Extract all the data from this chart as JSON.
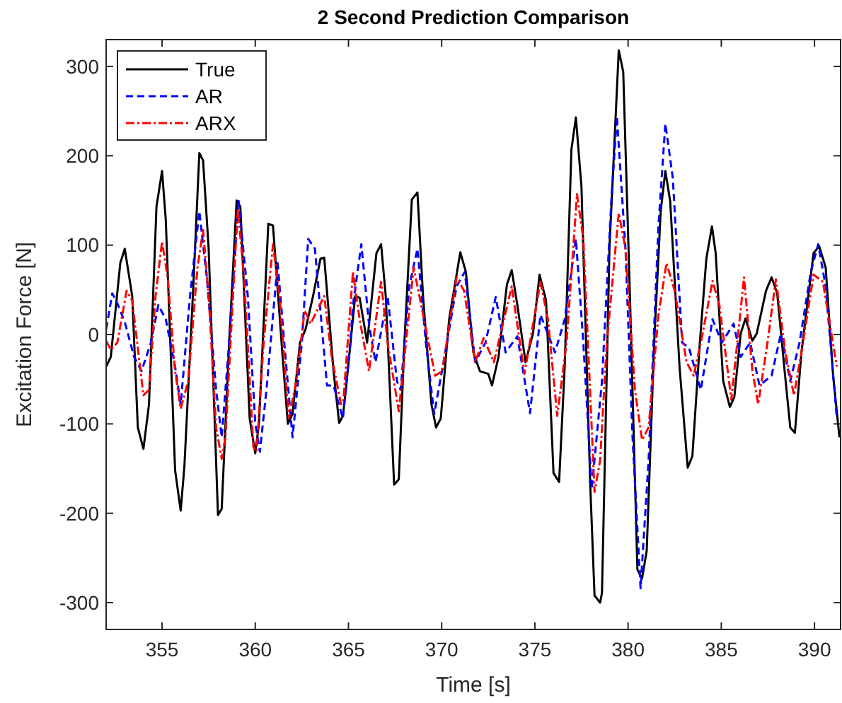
{
  "chart_data": {
    "type": "line",
    "title": "2 Second Prediction Comparison",
    "xlabel": "Time [s]",
    "ylabel": "Excitation Force [N]",
    "xlim": [
      352,
      391.4
    ],
    "ylim": [
      -330,
      330
    ],
    "xticks": [
      355,
      360,
      365,
      370,
      375,
      380,
      385,
      390
    ],
    "yticks": [
      -300,
      -200,
      -100,
      0,
      100,
      200,
      300
    ],
    "grid": false,
    "legend": "top left",
    "marker": "none",
    "series": [
      {
        "name": "True",
        "color": "#000000",
        "line_style": "solid",
        "x": [
          352.0,
          352.25,
          352.76,
          353.0,
          353.4,
          353.7,
          354.0,
          354.3,
          354.7,
          355.0,
          355.2,
          355.7,
          356.0,
          356.2,
          356.7,
          357.0,
          357.2,
          357.5,
          358.0,
          358.2,
          358.6,
          359.0,
          359.2,
          359.7,
          360.0,
          360.2,
          360.7,
          360.95,
          361.45,
          361.75,
          362.0,
          362.4,
          362.7,
          363.1,
          363.5,
          363.7,
          364.2,
          364.5,
          364.7,
          364.86,
          365.36,
          365.6,
          366.0,
          366.5,
          366.75,
          367.0,
          367.45,
          367.7,
          368.0,
          368.4,
          368.7,
          369.0,
          369.45,
          369.7,
          369.95,
          370.4,
          371.0,
          371.3,
          371.7,
          372.05,
          372.5,
          372.7,
          373.05,
          373.5,
          373.76,
          374.06,
          374.5,
          374.9,
          375.25,
          375.6,
          376.0,
          376.3,
          376.6,
          376.96,
          377.2,
          377.5,
          377.97,
          378.2,
          378.5,
          378.6,
          379.0,
          379.5,
          379.74,
          380.1,
          380.5,
          380.75,
          381.0,
          381.4,
          381.75,
          382.0,
          382.26,
          382.76,
          383.2,
          383.45,
          383.85,
          384.2,
          384.5,
          384.7,
          385.1,
          385.46,
          385.7,
          386.04,
          386.3,
          386.67,
          386.9,
          387.4,
          387.7,
          388.0,
          388.4,
          388.7,
          388.95,
          389.3,
          389.95,
          390.25,
          390.6,
          391.0,
          391.34
        ],
        "values": [
          -36,
          -25,
          80,
          96,
          43,
          -104,
          -128,
          -78,
          143,
          183,
          128,
          -152,
          -197,
          -147,
          64,
          203,
          195,
          96,
          -202,
          -195,
          -9,
          150,
          143,
          -94,
          -133,
          -99,
          124,
          122,
          -20,
          -100,
          -89,
          -9,
          6,
          43,
          85,
          86,
          -41,
          -99,
          -91,
          -62,
          43,
          41,
          -9,
          91,
          101,
          43,
          -168,
          -162,
          -9,
          151,
          159,
          43,
          -78,
          -104,
          -94,
          17,
          92,
          70,
          -20,
          -41,
          -44,
          -57,
          -25,
          56,
          72,
          33,
          -31,
          1,
          67,
          38,
          -155,
          -165,
          -36,
          207,
          243,
          165,
          -168,
          -292,
          -300,
          -289,
          96,
          318,
          294,
          43,
          -263,
          -273,
          -242,
          -9,
          138,
          183,
          149,
          -36,
          -149,
          -136,
          -9,
          85,
          121,
          91,
          -52,
          -81,
          -70,
          1,
          18,
          -7,
          1,
          49,
          64,
          46,
          -41,
          -104,
          -110,
          -20,
          91,
          99,
          75,
          -46,
          -115
        ]
      },
      {
        "name": "AR",
        "color": "#0000ff",
        "line_style": "dashed",
        "x": [
          352.0,
          352.33,
          352.6,
          353.0,
          353.5,
          353.9,
          354.4,
          354.8,
          355.2,
          355.7,
          356.0,
          356.5,
          357.0,
          357.4,
          357.9,
          358.2,
          358.6,
          359.1,
          359.6,
          360.0,
          360.25,
          360.6,
          361.2,
          361.6,
          362.0,
          362.5,
          362.84,
          363.2,
          363.85,
          364.2,
          364.7,
          365.1,
          365.24,
          365.69,
          366.1,
          366.45,
          367.1,
          367.6,
          367.8,
          368.26,
          368.7,
          369.15,
          369.6,
          370.15,
          370.8,
          371.24,
          371.8,
          372.35,
          372.9,
          373.43,
          374.06,
          374.74,
          375.3,
          376.08,
          376.6,
          377.2,
          377.6,
          378.05,
          378.6,
          379.1,
          379.4,
          379.86,
          380.24,
          380.67,
          381.1,
          381.63,
          382.0,
          382.4,
          382.9,
          383.27,
          383.9,
          384.53,
          385.03,
          385.66,
          386.04,
          386.55,
          387.05,
          387.7,
          388.2,
          388.7,
          389.2,
          389.8,
          390.2,
          390.6,
          391.2
        ],
        "values": [
          6,
          46,
          35,
          14,
          -25,
          -41,
          -9,
          33,
          17,
          -36,
          -78,
          43,
          138,
          64,
          -62,
          -115,
          -9,
          151,
          43,
          -99,
          -131,
          -62,
          80,
          -20,
          -115,
          -9,
          107,
          96,
          -57,
          -57,
          -94,
          -9,
          33,
          101,
          12,
          -31,
          43,
          -52,
          -62,
          54,
          96,
          -9,
          -89,
          -25,
          54,
          70,
          -31,
          -9,
          42,
          -20,
          -2,
          -88,
          22,
          -20,
          17,
          107,
          -9,
          -173,
          -52,
          149,
          244,
          96,
          -115,
          -284,
          -141,
          122,
          236,
          175,
          -9,
          -15,
          -62,
          17,
          -9,
          12,
          -25,
          -9,
          -57,
          -46,
          1,
          -52,
          -9,
          70,
          101,
          54,
          -94
        ]
      },
      {
        "name": "ARX",
        "color": "#ff0000",
        "line_style": "dashdot",
        "x": [
          352.0,
          352.25,
          352.6,
          353.1,
          353.4,
          354.0,
          354.3,
          354.65,
          355.0,
          355.3,
          355.7,
          356.0,
          356.4,
          356.9,
          357.2,
          357.5,
          357.9,
          358.2,
          358.4,
          359.06,
          359.4,
          359.9,
          360.07,
          360.45,
          360.95,
          361.3,
          361.8,
          362.2,
          362.65,
          362.97,
          363.2,
          363.7,
          364.1,
          364.6,
          364.73,
          365.24,
          365.6,
          366.1,
          366.75,
          367.1,
          367.7,
          368.5,
          368.9,
          369.65,
          370.03,
          370.8,
          371.2,
          371.8,
          372.25,
          372.8,
          373.76,
          374.44,
          375.3,
          375.7,
          376.2,
          376.7,
          377.26,
          377.6,
          378.2,
          378.5,
          378.86,
          379.5,
          379.86,
          380.37,
          380.75,
          381.1,
          381.63,
          382.06,
          382.5,
          383.14,
          383.52,
          384.0,
          384.53,
          384.9,
          385.54,
          386.22,
          386.67,
          386.98,
          387.48,
          387.93,
          388.44,
          388.9,
          389.3,
          389.95,
          390.45,
          391.2
        ],
        "values": [
          -7,
          -17,
          -9,
          49,
          38,
          -68,
          -62,
          43,
          104,
          64,
          -41,
          -83,
          -52,
          75,
          117,
          43,
          -104,
          -139,
          -115,
          141,
          64,
          -126,
          -131,
          -9,
          101,
          43,
          -94,
          -52,
          27,
          12,
          22,
          43,
          -25,
          -78,
          -73,
          70,
          17,
          -41,
          59,
          -9,
          -86,
          75,
          33,
          -46,
          -41,
          64,
          49,
          -31,
          -4,
          -31,
          54,
          -44,
          59,
          17,
          -91,
          -9,
          157,
          107,
          -176,
          -141,
          -9,
          136,
          96,
          -62,
          -118,
          -104,
          22,
          80,
          49,
          -31,
          -46,
          1,
          60,
          33,
          -73,
          64,
          -41,
          -78,
          -9,
          62,
          -20,
          -68,
          -20,
          67,
          59,
          -36
        ]
      }
    ]
  }
}
